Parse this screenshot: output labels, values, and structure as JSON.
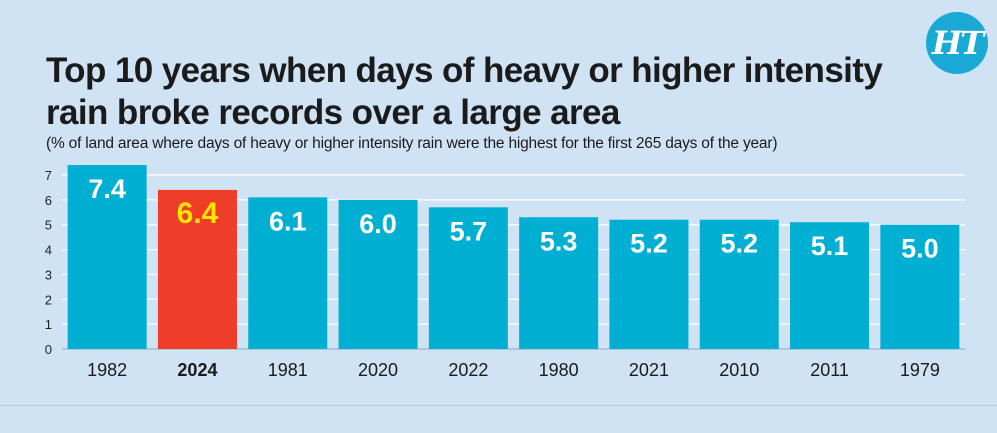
{
  "brand": {
    "logo_text": "HT",
    "logo_color": "#1aa8d4"
  },
  "colors": {
    "bar_default": "#00afd1",
    "bar_highlight": "#ee3e28",
    "label_default": "#ffffff",
    "label_highlight": "#ffe600",
    "background": "#cfe3f5",
    "grid": "#ffffff"
  },
  "chart_data": {
    "type": "bar",
    "title": "Top 10 years when days of heavy or higher intensity rain broke records over a large area",
    "subtitle": "(% of land area where days of heavy or higher intensity rain were the highest for the first 265 days of the year)",
    "xlabel": "",
    "ylabel": "",
    "categories": [
      "1982",
      "2024",
      "1981",
      "2020",
      "2022",
      "1980",
      "2021",
      "2010",
      "2011",
      "1979"
    ],
    "values": [
      7.4,
      6.4,
      6.1,
      6.0,
      5.7,
      5.3,
      5.2,
      5.2,
      5.1,
      5.0
    ],
    "value_labels": [
      "7.4",
      "6.4",
      "6.1",
      "6.0",
      "5.7",
      "5.3",
      "5.2",
      "5.2",
      "5.1",
      "5.0"
    ],
    "highlight_category": "2024",
    "ylim": [
      0,
      7
    ],
    "yticks": [
      "0",
      "1",
      "2",
      "3",
      "4",
      "5",
      "6",
      "7"
    ],
    "grid": true,
    "legend": "none"
  }
}
